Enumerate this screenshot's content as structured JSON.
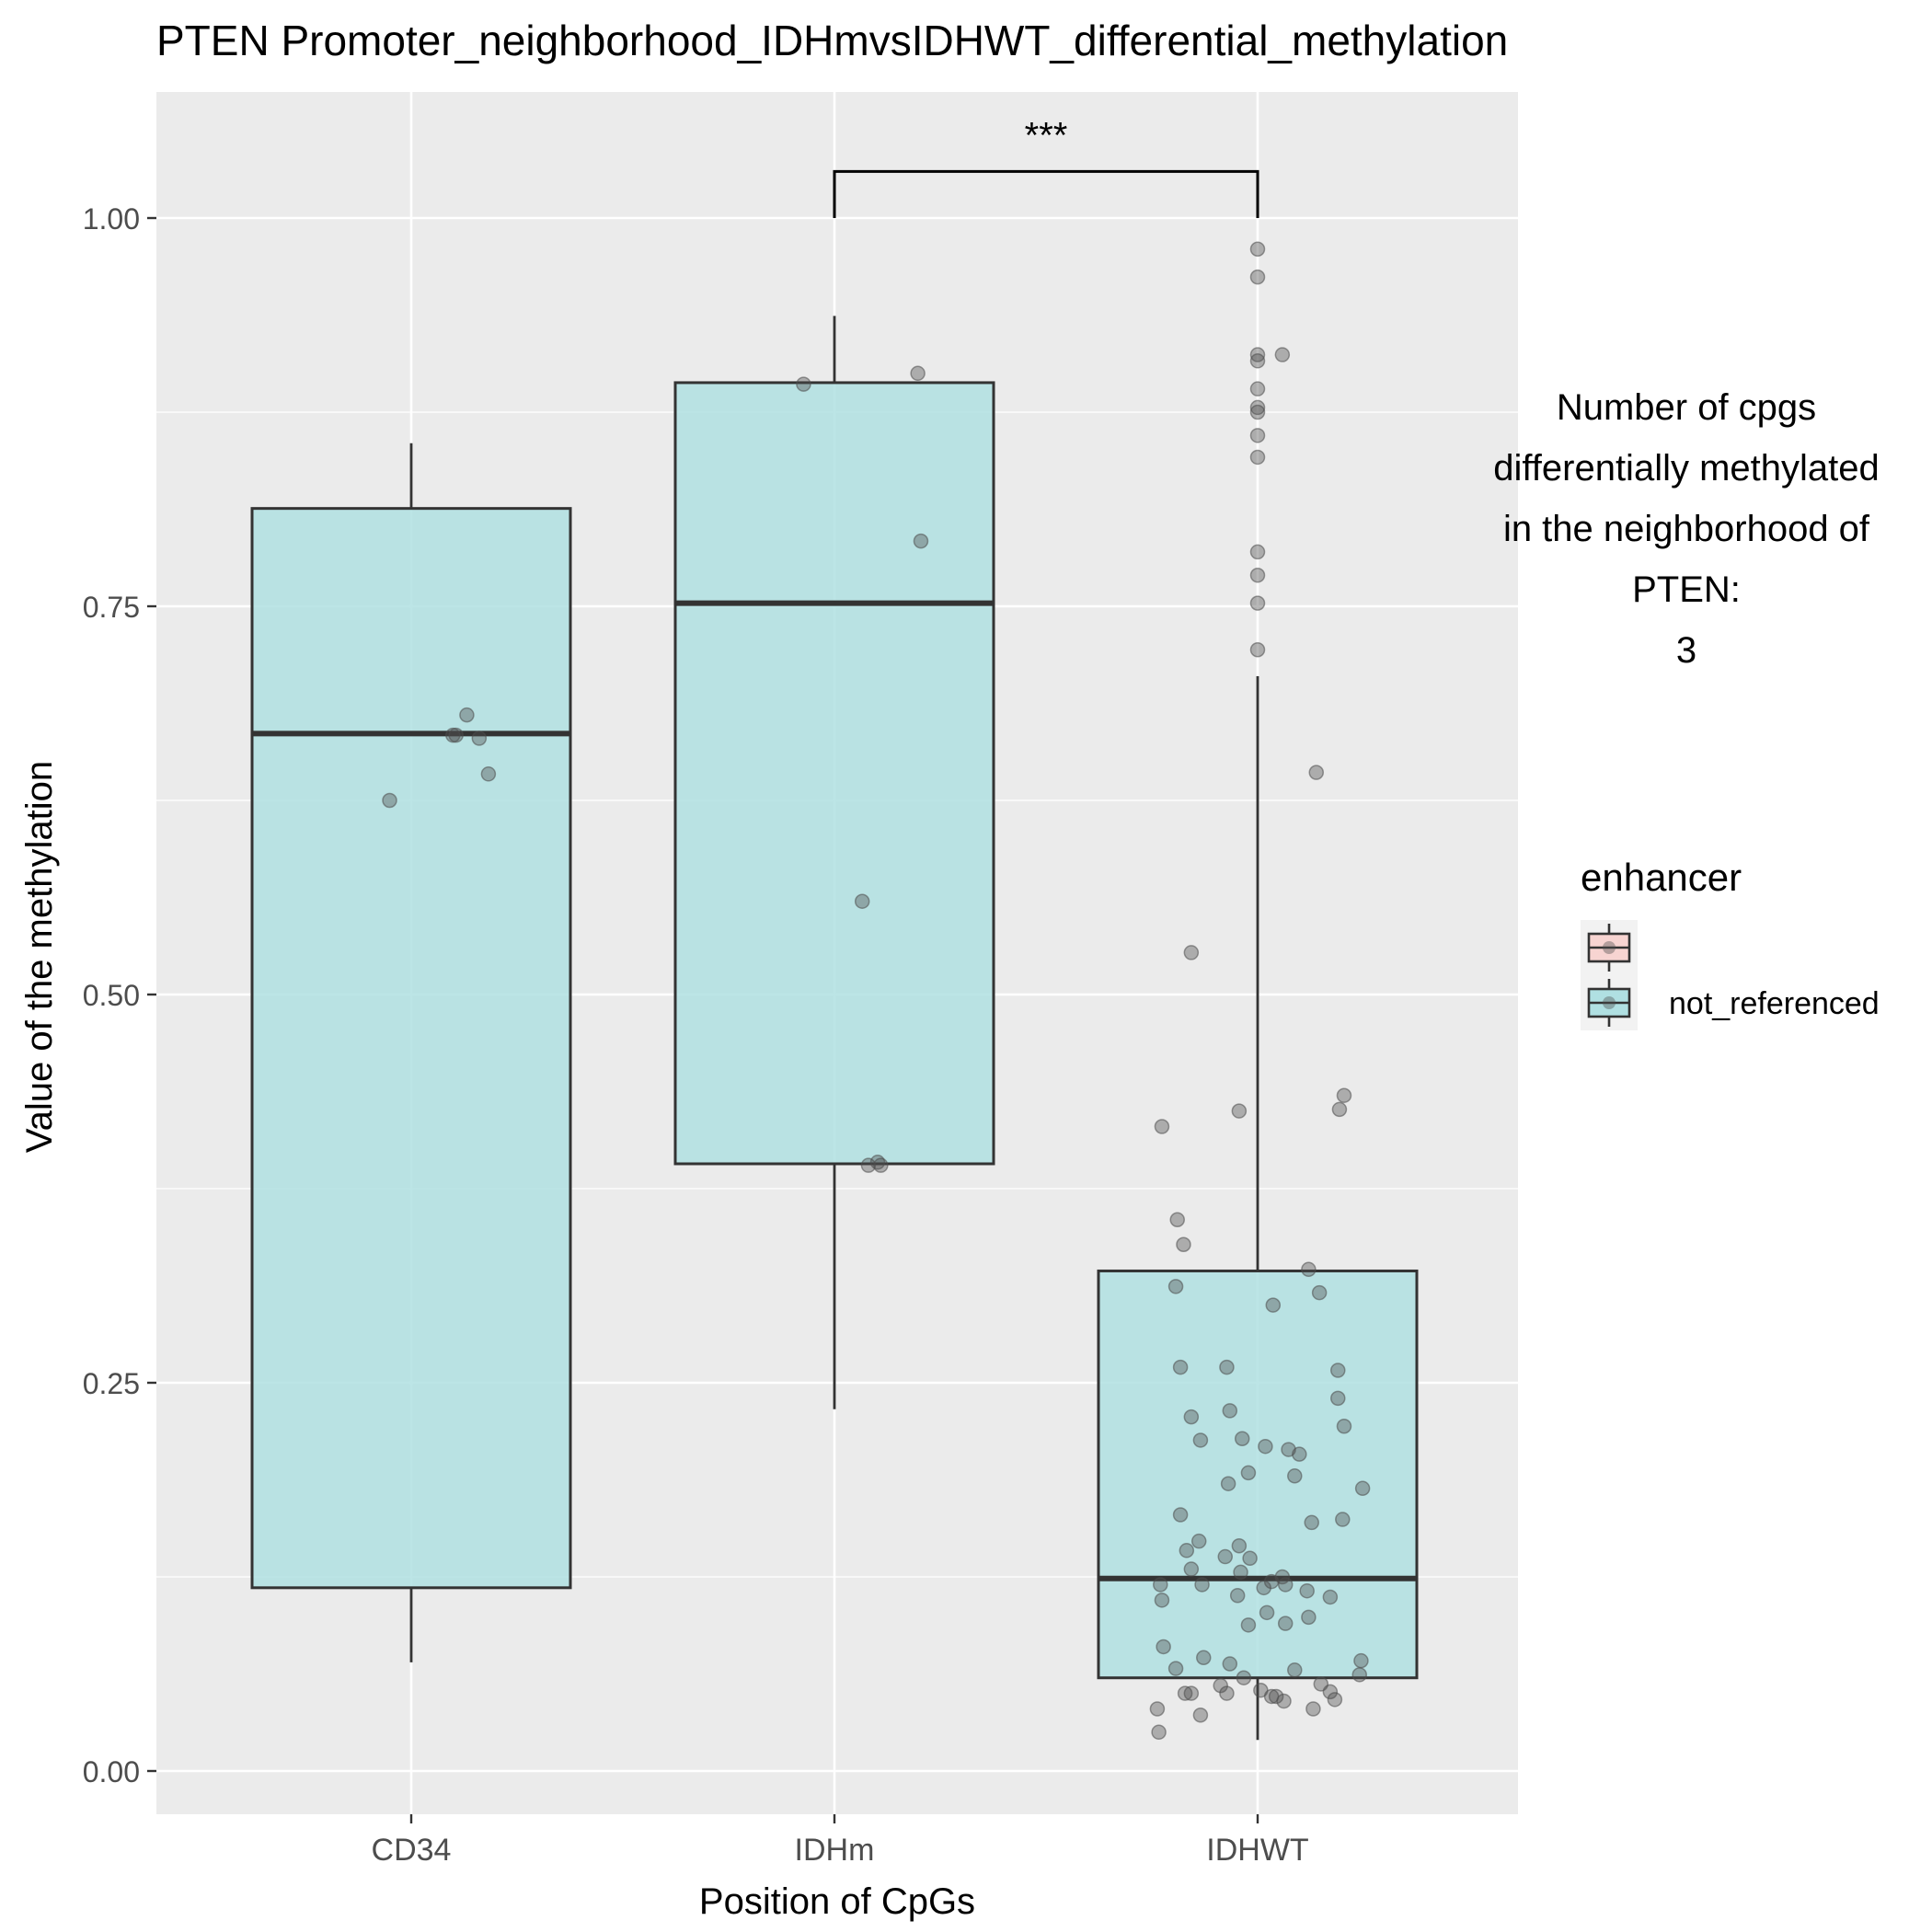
{
  "chart_data": {
    "type": "boxplot",
    "title": "PTEN Promoter_neighborhood_IDHmvsIDHWT_differential_methylation",
    "xlabel": "Position of CpGs",
    "ylabel": "Value of the methylation",
    "categories": [
      "CD34",
      "IDHm",
      "IDHWT"
    ],
    "y_ticks": [
      "0.00",
      "0.25",
      "0.50",
      "0.75",
      "1.00"
    ],
    "y_tick_values": [
      0,
      0.25,
      0.5,
      0.75,
      1.0
    ],
    "ylim": [
      -0.03,
      1.07
    ],
    "grid": true,
    "boxes": [
      {
        "category": "CD34",
        "whisker_low": 0.07,
        "q1": 0.118,
        "median": 0.668,
        "q3": 0.813,
        "whisker_high": 0.855
      },
      {
        "category": "IDHm",
        "whisker_low": 0.233,
        "q1": 0.391,
        "median": 0.752,
        "q3": 0.894,
        "whisker_high": 0.937
      },
      {
        "category": "IDHWT",
        "whisker_low": 0.02,
        "q1": 0.06,
        "median": 0.124,
        "q3": 0.322,
        "whisker_high": 0.705
      }
    ],
    "points": [
      {
        "category": "CD34",
        "jitter": [
          -0.14,
          0.27,
          0.29,
          0.36,
          0.44,
          0.5
        ],
        "values": [
          0.625,
          0.667,
          0.667,
          0.68,
          0.665,
          0.642
        ]
      },
      {
        "category": "IDHm",
        "jitter": [
          -0.2,
          0.54,
          0.56,
          0.18,
          0.28,
          0.22,
          0.3
        ],
        "values": [
          0.893,
          0.9,
          0.792,
          0.56,
          0.392,
          0.39,
          0.39
        ]
      },
      {
        "category": "IDHWT",
        "jitter": [
          0,
          0,
          0.16,
          0,
          0,
          0,
          0,
          0,
          0,
          0,
          0,
          0,
          0,
          0,
          0.38,
          -0.43,
          -0.52,
          0.33,
          0.4,
          0.52,
          -0.2,
          -0.53,
          0.56,
          0.53,
          -0.62,
          -0.48,
          -0.12,
          0.1,
          -0.5,
          0.52,
          -0.18,
          -0.43,
          0.56,
          -0.1,
          -0.37,
          0.05,
          0.2,
          0.27,
          -0.06,
          0.24,
          0.68,
          -0.5,
          0.35,
          -0.12,
          -0.46,
          -0.05,
          -0.43,
          -0.11,
          0.16,
          0.09,
          -0.63,
          -0.36,
          0.04,
          -0.13,
          0.32,
          -0.62,
          0.06,
          0.33,
          0.18,
          -0.06,
          -0.61,
          -0.35,
          0.67,
          -0.53,
          0.24,
          0.66,
          -0.09,
          0.41,
          -0.24,
          0.02,
          0.47,
          -0.43,
          -0.2,
          0.09,
          0.5,
          0.17,
          0.36,
          -0.65,
          -0.37,
          -0.64,
          -0.19,
          -0.38,
          0.55,
          -0.21,
          0.18,
          0.47,
          -0.18,
          0.12,
          -0.47
        ],
        "values": [
          0.98,
          0.962,
          0.912,
          0.912,
          0.908,
          0.89,
          0.878,
          0.875,
          0.86,
          0.846,
          0.785,
          0.77,
          0.752,
          0.722,
          0.643,
          0.527,
          0.355,
          0.323,
          0.308,
          0.258,
          0.26,
          0.312,
          0.435,
          0.426,
          0.415,
          0.339,
          0.425,
          0.3,
          0.26,
          0.24,
          0.232,
          0.228,
          0.222,
          0.214,
          0.213,
          0.209,
          0.207,
          0.204,
          0.192,
          0.19,
          0.182,
          0.165,
          0.16,
          0.145,
          0.142,
          0.137,
          0.13,
          0.128,
          0.125,
          0.122,
          0.12,
          0.12,
          0.118,
          0.113,
          0.116,
          0.11,
          0.102,
          0.099,
          0.095,
          0.094,
          0.08,
          0.073,
          0.071,
          0.066,
          0.065,
          0.062,
          0.06,
          0.056,
          0.055,
          0.052,
          0.051,
          0.05,
          0.05,
          0.048,
          0.046,
          0.045,
          0.04,
          0.04,
          0.036,
          0.025,
          0.185,
          0.148,
          0.162,
          0.138,
          0.12,
          0.112,
          0.069,
          0.048,
          0.05
        ]
      }
    ],
    "significance": {
      "from": "IDHm",
      "to": "IDHWT",
      "y": 1.03,
      "label": "***"
    },
    "annotation_lines": [
      "Number of cpgs",
      "differentially methylated",
      "in the neighborhood of",
      "PTEN:",
      "3"
    ],
    "legend": {
      "title": "enhancer",
      "position": "right",
      "entries": [
        {
          "label": "",
          "fill": "#f7d4d1"
        },
        {
          "label": "not_referenced",
          "fill": "#b0e0e2"
        }
      ]
    },
    "colors": {
      "panel": "#ebebeb",
      "grid": "#ffffff",
      "box_fill": "#b0e0e2",
      "box_stroke": "#333333",
      "point": "#4d4d4d",
      "text": "#000000",
      "tick_text": "#4d4d4d"
    }
  }
}
